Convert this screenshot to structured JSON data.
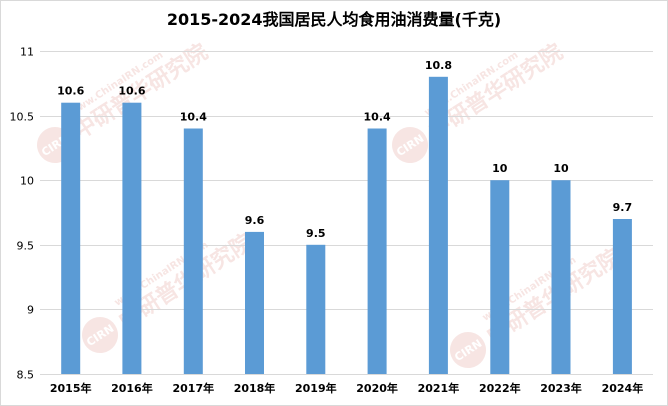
{
  "watermark": {
    "logo": "CIRN",
    "name": "中研普华研究院",
    "url": "www.ChinaIRN.com"
  },
  "colors": {
    "bar": "#5B9BD5",
    "grid": "#D9D9D9",
    "watermark": "#C0392B"
  },
  "chart_data": {
    "type": "bar",
    "title": "2015-2024我国居民人均食用油消费量(千克)",
    "categories": [
      "2015年",
      "2016年",
      "2017年",
      "2018年",
      "2019年",
      "2020年",
      "2021年",
      "2022年",
      "2023年",
      "2024年"
    ],
    "values": [
      10.6,
      10.6,
      10.4,
      9.6,
      9.5,
      10.4,
      10.8,
      10,
      10,
      9.7
    ],
    "yticks": [
      8.5,
      9,
      9.5,
      10,
      10.5,
      11
    ],
    "ylim": [
      8.5,
      11
    ],
    "xlabel": "",
    "ylabel": "",
    "grid": true,
    "legend": "none"
  }
}
